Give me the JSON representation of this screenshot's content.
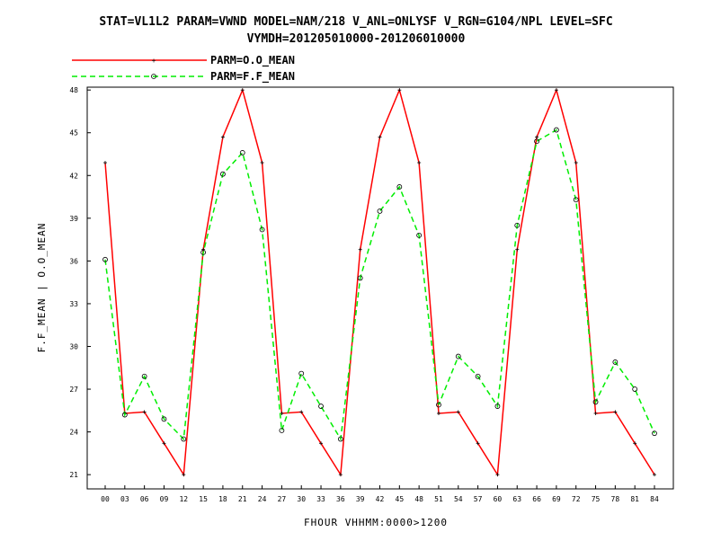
{
  "chart_data": {
    "type": "line",
    "title_line1": "STAT=VL1L2 PARAM=VWND MODEL=NAM/218 V_ANL=ONLYSF V_RGN=G104/NPL LEVEL=SFC",
    "title_line2": "VYMDH=201205010000-201206010000",
    "xlabel": "FHOUR VHHMM:0000>1200",
    "ylabel": "F.F_MEAN | O.O_MEAN",
    "categories": [
      "00",
      "03",
      "06",
      "09",
      "12",
      "15",
      "18",
      "21",
      "24",
      "27",
      "30",
      "33",
      "36",
      "39",
      "42",
      "45",
      "48",
      "51",
      "54",
      "57",
      "60",
      "63",
      "66",
      "69",
      "72",
      "75",
      "78",
      "81",
      "84"
    ],
    "yticks": [
      "48",
      "45",
      "42",
      "39",
      "36",
      "33",
      "30",
      "27",
      "24",
      "21"
    ],
    "ylim": [
      20,
      48.2
    ],
    "grid": false,
    "legend_position": "top-left",
    "series": [
      {
        "name": "PARM=O.O_MEAN",
        "color": "#ff0000",
        "style": "solid",
        "marker": "plus",
        "values": [
          42.9,
          25.3,
          25.4,
          23.2,
          21.0,
          36.8,
          44.7,
          48.0,
          42.9,
          25.3,
          25.4,
          23.2,
          21.0,
          36.8,
          44.7,
          48.0,
          42.9,
          25.3,
          25.4,
          23.2,
          21.0,
          36.8,
          44.7,
          48.0,
          42.9,
          25.3,
          25.4,
          23.2,
          21.0
        ]
      },
      {
        "name": "PARM=F.F_MEAN",
        "color": "#00ee00",
        "style": "dashed",
        "marker": "circle",
        "values": [
          36.1,
          25.2,
          27.9,
          24.9,
          23.5,
          36.6,
          42.1,
          43.6,
          38.2,
          24.1,
          28.1,
          25.8,
          23.5,
          34.8,
          39.5,
          41.2,
          37.8,
          25.9,
          29.3,
          27.9,
          25.8,
          38.5,
          44.4,
          45.2,
          40.3,
          26.1,
          28.9,
          27.0,
          23.9
        ]
      }
    ]
  }
}
